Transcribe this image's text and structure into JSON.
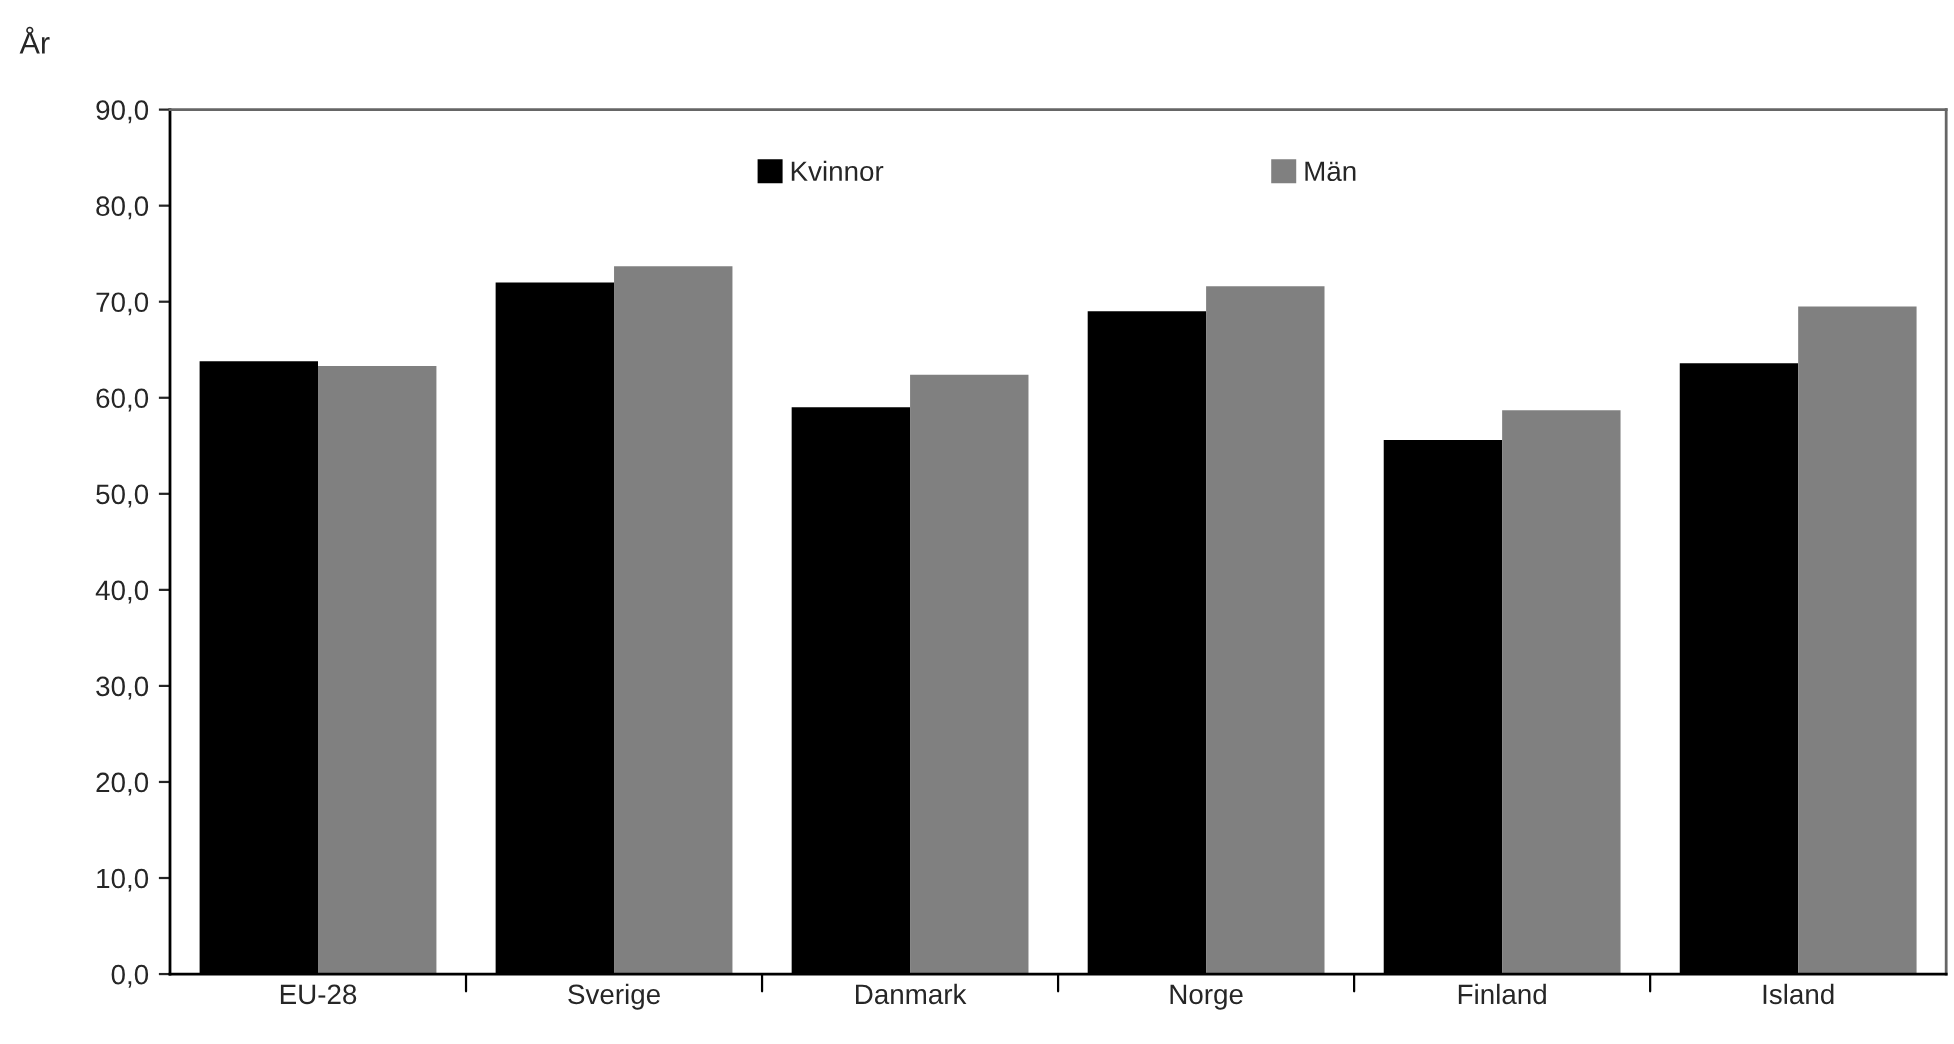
{
  "chart_data": {
    "type": "bar",
    "ylabel": "År",
    "categories": [
      "EU-28",
      "Sverige",
      "Danmark",
      "Norge",
      "Finland",
      "Island"
    ],
    "series": [
      {
        "name": "Kvinnor",
        "color": "#000000",
        "values": [
          63.8,
          72.0,
          59.0,
          69.0,
          55.6,
          63.6
        ]
      },
      {
        "name": "Män",
        "color": "#808080",
        "values": [
          63.3,
          73.7,
          62.4,
          71.6,
          58.7,
          69.5
        ]
      }
    ],
    "ylim": [
      0,
      90
    ],
    "yticks": [
      {
        "value": 0,
        "label": "0,0"
      },
      {
        "value": 10,
        "label": "10,0"
      },
      {
        "value": 20,
        "label": "20,0"
      },
      {
        "value": 30,
        "label": "30,0"
      },
      {
        "value": 40,
        "label": "40,0"
      },
      {
        "value": 50,
        "label": "50,0"
      },
      {
        "value": 60,
        "label": "60,0"
      },
      {
        "value": 70,
        "label": "70,0"
      },
      {
        "value": 80,
        "label": "80,0"
      },
      {
        "value": 90,
        "label": "90,0"
      }
    ],
    "legend": "top",
    "grid": false
  }
}
